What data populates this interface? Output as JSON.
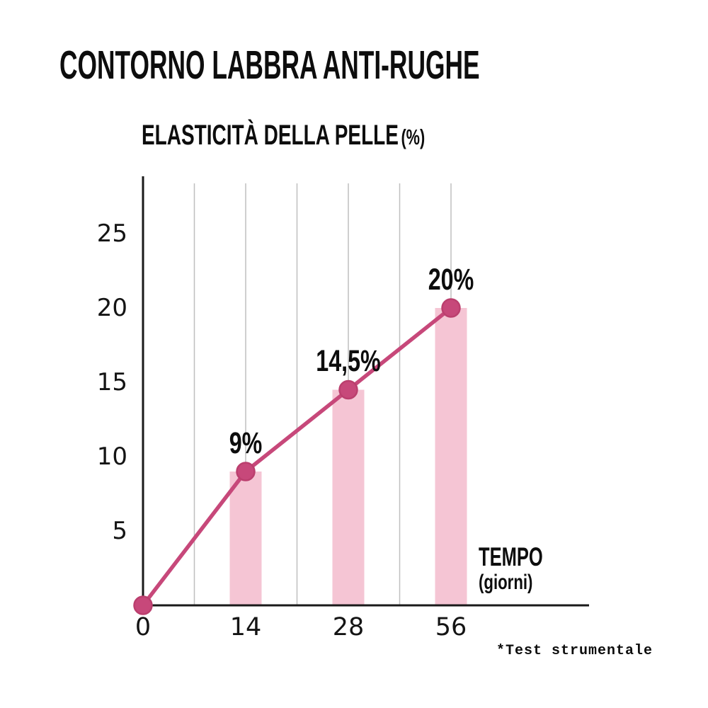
{
  "header": {
    "title": "CONTORNO LABBRA ANTI-RUGHE"
  },
  "chart": {
    "subtitle": "ELASTICITÀ DELLA PELLE",
    "subtitle_unit": "(%)",
    "x_axis_title": "TEMPO",
    "x_axis_subtitle": "(giorni)"
  },
  "footnote": "*Test strumentale",
  "chart_data": {
    "type": "line",
    "title": "ELASTICITÀ DELLA PELLE (%)",
    "xlabel": "TEMPO (giorni)",
    "ylabel": "ELASTICITÀ DELLA PELLE (%)",
    "categories": [
      "0",
      "14",
      "28",
      "56"
    ],
    "values": [
      0,
      9,
      14.5,
      20
    ],
    "point_labels": [
      "",
      "9%",
      "14,5%",
      "20%"
    ],
    "y_ticks": [
      5,
      10,
      15,
      20,
      25
    ],
    "ylim": [
      0,
      27.5
    ],
    "grid": "vertical-only",
    "legend": "none",
    "has_bars_under_points": true,
    "colors": {
      "bar": "#f5c5d4",
      "line": "#c7487a",
      "dot": "#c7487a",
      "dot_rim": "#bb3f6e",
      "grid": "#bfbfbf",
      "axis": "#1a1a1a",
      "text": "#0d0d0d"
    }
  }
}
